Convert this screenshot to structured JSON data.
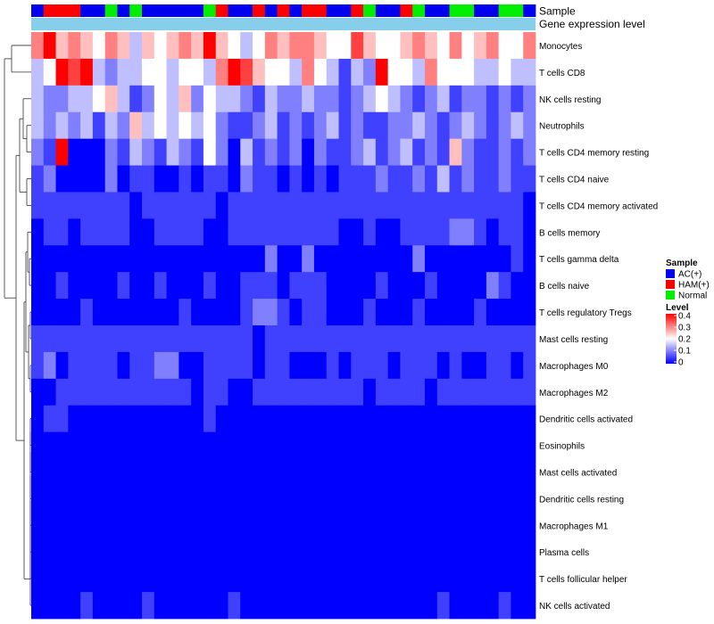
{
  "chart_data": {
    "type": "heatmap",
    "annotation_rows": [
      "Sample",
      "Gene expression level"
    ],
    "rows": [
      "Monocytes",
      "T cells CD8",
      "NK cells resting",
      "Neutrophils",
      "T cells CD4 memory resting",
      "T cells CD4 naive",
      "T cells CD4 memory activated",
      "B cells memory",
      "T cells gamma delta",
      "B cells naive",
      "T cells regulatory  Tregs",
      "Mast cells resting",
      "Macrophages M0",
      "Macrophages M2",
      "Dendritic cells activated",
      "Eosinophils",
      "Mast cells activated",
      "Dendritic cells resting",
      "Macrophages M1",
      "Plasma cells",
      "T cells follicular helper",
      "NK cells activated"
    ],
    "sample_groups": [
      "A",
      "H",
      "H",
      "H",
      "A",
      "A",
      "N",
      "A",
      "N",
      "A",
      "A",
      "A",
      "A",
      "A",
      "N",
      "H",
      "A",
      "A",
      "H",
      "A",
      "H",
      "A",
      "H",
      "H",
      "A",
      "A",
      "H",
      "N",
      "A",
      "A",
      "H",
      "N",
      "A",
      "A",
      "N",
      "N",
      "A",
      "A",
      "N",
      "N",
      "A"
    ],
    "values": [
      [
        0.3,
        0.4,
        0.25,
        0.3,
        0.25,
        0.2,
        0.3,
        0.25,
        0.15,
        0.25,
        0.2,
        0.25,
        0.3,
        0.25,
        0.4,
        0.25,
        0.2,
        0.15,
        0.2,
        0.3,
        0.25,
        0.3,
        0.3,
        0.25,
        0.2,
        0.2,
        0.35,
        0.25,
        0.2,
        0.2,
        0.25,
        0.3,
        0.25,
        0.2,
        0.3,
        0.2,
        0.25,
        0.3,
        0.2,
        0.2,
        0.3
      ],
      [
        0.15,
        0.2,
        0.4,
        0.35,
        0.4,
        0.15,
        0.1,
        0.15,
        0.15,
        0.2,
        0.2,
        0.15,
        0.2,
        0.2,
        0.15,
        0.3,
        0.4,
        0.35,
        0.25,
        0.2,
        0.2,
        0.15,
        0.3,
        0.2,
        0.15,
        0.05,
        0.15,
        0.1,
        0.4,
        0.2,
        0.2,
        0.15,
        0.3,
        0.2,
        0.2,
        0.2,
        0.15,
        0.15,
        0.2,
        0.15,
        0.15
      ],
      [
        0.15,
        0.1,
        0.1,
        0.15,
        0.15,
        0.2,
        0.25,
        0.15,
        0.05,
        0.1,
        0.2,
        0.15,
        0.25,
        0.1,
        0.2,
        0.15,
        0.15,
        0.1,
        0.05,
        0.15,
        0.1,
        0.1,
        0.15,
        0.1,
        0.1,
        0.05,
        0.1,
        0.15,
        0.2,
        0.15,
        0.1,
        0.05,
        0.1,
        0.15,
        0.05,
        0.1,
        0.1,
        0.05,
        0.1,
        0.05,
        0.1
      ],
      [
        0.15,
        0.1,
        0.15,
        0.1,
        0.15,
        0.05,
        0.15,
        0.1,
        0.25,
        0.15,
        0.2,
        0.15,
        0.2,
        0.15,
        0.2,
        0.1,
        0.05,
        0.05,
        0.1,
        0.15,
        0.05,
        0.1,
        0.05,
        0.1,
        0.15,
        0.05,
        0.1,
        0.05,
        0.05,
        0.1,
        0.1,
        0.15,
        0.1,
        0.05,
        0.1,
        0.15,
        0.1,
        0.05,
        0.1,
        0.15,
        0.1
      ],
      [
        0.1,
        0.05,
        0.4,
        0.0,
        0.0,
        0.0,
        0.1,
        0.05,
        0.15,
        0.1,
        0.05,
        0.15,
        0.1,
        0.05,
        0.2,
        0.1,
        0.0,
        0.15,
        0.05,
        0.1,
        0.05,
        0.1,
        0.0,
        0.1,
        0.05,
        0.05,
        0.1,
        0.15,
        0.05,
        0.1,
        0.15,
        0.05,
        0.1,
        0.05,
        0.25,
        0.1,
        0.05,
        0.05,
        0.1,
        0.05,
        0.1
      ],
      [
        0.05,
        0.1,
        0.0,
        0.0,
        0.0,
        0.0,
        0.1,
        0.0,
        0.05,
        0.05,
        0.0,
        0.0,
        0.05,
        0.0,
        0.05,
        0.05,
        0.0,
        0.1,
        0.05,
        0.05,
        0.0,
        0.05,
        0.0,
        0.05,
        0.0,
        0.05,
        0.05,
        0.05,
        0.1,
        0.05,
        0.05,
        0.1,
        0.05,
        0.15,
        0.05,
        0.1,
        0.05,
        0.05,
        0.1,
        0.05,
        0.05
      ],
      [
        0.05,
        0.05,
        0.05,
        0.05,
        0.05,
        0.05,
        0.05,
        0.05,
        0.0,
        0.05,
        0.05,
        0.05,
        0.05,
        0.05,
        0.05,
        0.0,
        0.05,
        0.05,
        0.05,
        0.05,
        0.05,
        0.05,
        0.05,
        0.05,
        0.05,
        0.05,
        0.05,
        0.05,
        0.05,
        0.05,
        0.05,
        0.05,
        0.05,
        0.05,
        0.05,
        0.05,
        0.05,
        0.05,
        0.05,
        0.05,
        0.0
      ],
      [
        0.0,
        0.05,
        0.05,
        0.0,
        0.05,
        0.05,
        0.05,
        0.05,
        0.0,
        0.0,
        0.05,
        0.05,
        0.05,
        0.05,
        0.0,
        0.0,
        0.05,
        0.05,
        0.05,
        0.05,
        0.05,
        0.05,
        0.05,
        0.05,
        0.05,
        0.0,
        0.0,
        0.05,
        0.0,
        0.0,
        0.05,
        0.05,
        0.05,
        0.05,
        0.1,
        0.1,
        0.05,
        0.0,
        0.05,
        0.05,
        0.0
      ],
      [
        0.0,
        0.0,
        0.0,
        0.0,
        0.0,
        0.0,
        0.0,
        0.0,
        0.0,
        0.0,
        0.0,
        0.0,
        0.0,
        0.0,
        0.0,
        0.0,
        0.0,
        0.0,
        0.0,
        0.1,
        0.0,
        0.0,
        0.1,
        0.0,
        0.0,
        0.0,
        0.0,
        0.0,
        0.0,
        0.0,
        0.0,
        0.1,
        0.0,
        0.0,
        0.0,
        0.0,
        0.0,
        0.0,
        0.0,
        0.05,
        0.0
      ],
      [
        0.0,
        0.0,
        0.05,
        0.0,
        0.0,
        0.0,
        0.0,
        0.05,
        0.0,
        0.0,
        0.05,
        0.0,
        0.0,
        0.0,
        0.05,
        0.0,
        0.0,
        0.05,
        0.05,
        0.05,
        0.0,
        0.05,
        0.05,
        0.05,
        0.0,
        0.0,
        0.0,
        0.0,
        0.05,
        0.0,
        0.0,
        0.0,
        0.05,
        0.0,
        0.0,
        0.0,
        0.0,
        0.1,
        0.05,
        0.0,
        0.0
      ],
      [
        0.0,
        0.0,
        0.0,
        0.0,
        0.05,
        0.0,
        0.0,
        0.0,
        0.0,
        0.0,
        0.0,
        0.0,
        0.05,
        0.0,
        0.0,
        0.0,
        0.0,
        0.05,
        0.1,
        0.1,
        0.05,
        0.0,
        0.05,
        0.05,
        0.0,
        0.0,
        0.0,
        0.05,
        0.0,
        0.0,
        0.0,
        0.05,
        0.0,
        0.0,
        0.0,
        0.0,
        0.05,
        0.0,
        0.0,
        0.0,
        0.0
      ],
      [
        0.05,
        0.05,
        0.05,
        0.05,
        0.05,
        0.05,
        0.05,
        0.05,
        0.05,
        0.05,
        0.05,
        0.05,
        0.05,
        0.05,
        0.05,
        0.05,
        0.05,
        0.05,
        0.0,
        0.05,
        0.05,
        0.05,
        0.05,
        0.05,
        0.05,
        0.05,
        0.05,
        0.05,
        0.05,
        0.05,
        0.05,
        0.05,
        0.05,
        0.05,
        0.05,
        0.05,
        0.05,
        0.05,
        0.05,
        0.05,
        0.05
      ],
      [
        0.05,
        0.1,
        0.0,
        0.05,
        0.05,
        0.05,
        0.05,
        0.0,
        0.05,
        0.05,
        0.1,
        0.1,
        0.0,
        0.0,
        0.05,
        0.05,
        0.05,
        0.05,
        0.0,
        0.05,
        0.05,
        0.0,
        0.0,
        0.0,
        0.05,
        0.0,
        0.05,
        0.05,
        0.05,
        0.0,
        0.05,
        0.05,
        0.05,
        0.0,
        0.05,
        0.0,
        0.0,
        0.05,
        0.05,
        0.0,
        0.05
      ],
      [
        0.0,
        0.0,
        0.05,
        0.05,
        0.05,
        0.05,
        0.05,
        0.05,
        0.05,
        0.05,
        0.05,
        0.05,
        0.05,
        0.0,
        0.05,
        0.05,
        0.0,
        0.0,
        0.05,
        0.05,
        0.05,
        0.05,
        0.05,
        0.05,
        0.05,
        0.05,
        0.05,
        0.0,
        0.05,
        0.05,
        0.05,
        0.05,
        0.0,
        0.05,
        0.05,
        0.05,
        0.05,
        0.05,
        0.05,
        0.05,
        0.05
      ],
      [
        0.0,
        0.05,
        0.05,
        0.0,
        0.0,
        0.0,
        0.0,
        0.0,
        0.0,
        0.0,
        0.0,
        0.0,
        0.0,
        0.0,
        0.05,
        0.0,
        0.0,
        0.0,
        0.0,
        0.0,
        0.0,
        0.0,
        0.0,
        0.0,
        0.0,
        0.0,
        0.0,
        0.0,
        0.0,
        0.0,
        0.0,
        0.0,
        0.0,
        0.0,
        0.0,
        0.0,
        0.0,
        0.0,
        0.0,
        0.0,
        0.0
      ],
      [
        0,
        0,
        0,
        0,
        0,
        0,
        0,
        0,
        0,
        0,
        0,
        0,
        0,
        0,
        0,
        0,
        0,
        0,
        0,
        0,
        0,
        0,
        0,
        0,
        0,
        0,
        0,
        0,
        0,
        0,
        0,
        0,
        0,
        0,
        0,
        0,
        0,
        0,
        0,
        0,
        0
      ],
      [
        0,
        0,
        0,
        0,
        0,
        0,
        0,
        0,
        0,
        0,
        0,
        0,
        0,
        0,
        0,
        0,
        0,
        0,
        0,
        0,
        0,
        0,
        0,
        0,
        0,
        0,
        0,
        0,
        0,
        0,
        0,
        0,
        0,
        0,
        0,
        0,
        0,
        0,
        0,
        0,
        0
      ],
      [
        0,
        0,
        0,
        0,
        0,
        0,
        0,
        0,
        0,
        0,
        0,
        0,
        0,
        0,
        0,
        0,
        0,
        0,
        0,
        0,
        0,
        0,
        0,
        0,
        0,
        0,
        0,
        0,
        0,
        0,
        0,
        0,
        0,
        0,
        0,
        0,
        0,
        0,
        0,
        0,
        0
      ],
      [
        0,
        0,
        0,
        0,
        0,
        0,
        0,
        0,
        0,
        0,
        0,
        0,
        0,
        0,
        0,
        0,
        0,
        0,
        0,
        0,
        0,
        0,
        0,
        0,
        0,
        0,
        0,
        0,
        0,
        0,
        0,
        0,
        0,
        0,
        0,
        0,
        0,
        0,
        0,
        0,
        0
      ],
      [
        0,
        0,
        0,
        0,
        0,
        0,
        0,
        0,
        0,
        0,
        0,
        0,
        0,
        0,
        0,
        0,
        0,
        0,
        0,
        0,
        0,
        0,
        0,
        0,
        0,
        0,
        0,
        0,
        0,
        0,
        0,
        0,
        0,
        0,
        0,
        0,
        0,
        0,
        0,
        0,
        0
      ],
      [
        0,
        0,
        0,
        0,
        0,
        0,
        0,
        0,
        0,
        0,
        0,
        0,
        0,
        0,
        0,
        0,
        0,
        0,
        0,
        0,
        0,
        0,
        0,
        0,
        0,
        0,
        0,
        0,
        0,
        0,
        0,
        0,
        0,
        0,
        0,
        0,
        0,
        0,
        0,
        0,
        0
      ],
      [
        0.0,
        0.0,
        0.0,
        0.0,
        0.05,
        0.0,
        0.0,
        0.0,
        0.0,
        0.05,
        0.0,
        0.0,
        0.0,
        0.0,
        0.0,
        0.0,
        0.05,
        0.0,
        0.0,
        0.0,
        0.0,
        0.0,
        0.0,
        0.0,
        0.0,
        0.0,
        0.0,
        0.0,
        0.0,
        0.0,
        0.0,
        0.0,
        0.0,
        0.05,
        0.0,
        0.0,
        0.0,
        0.0,
        0.05,
        0.0,
        0.0
      ]
    ],
    "legend": {
      "sample_title": "Sample",
      "sample_items": [
        {
          "key": "A",
          "label": "AC(+)",
          "color": "#0000ee"
        },
        {
          "key": "H",
          "label": "HAM(+)",
          "color": "#ff0000"
        },
        {
          "key": "N",
          "label": "Normal",
          "color": "#00ee00"
        }
      ],
      "level_title": "Level",
      "level_ticks": [
        "0.4",
        "0.3",
        "0.2",
        "0.1",
        "0"
      ],
      "level_range": [
        0,
        0.4
      ]
    },
    "colors": {
      "low": "#0000ff",
      "mid": "#ffffff",
      "high": "#ff0000",
      "expression_bar": "#87ceeb"
    }
  }
}
